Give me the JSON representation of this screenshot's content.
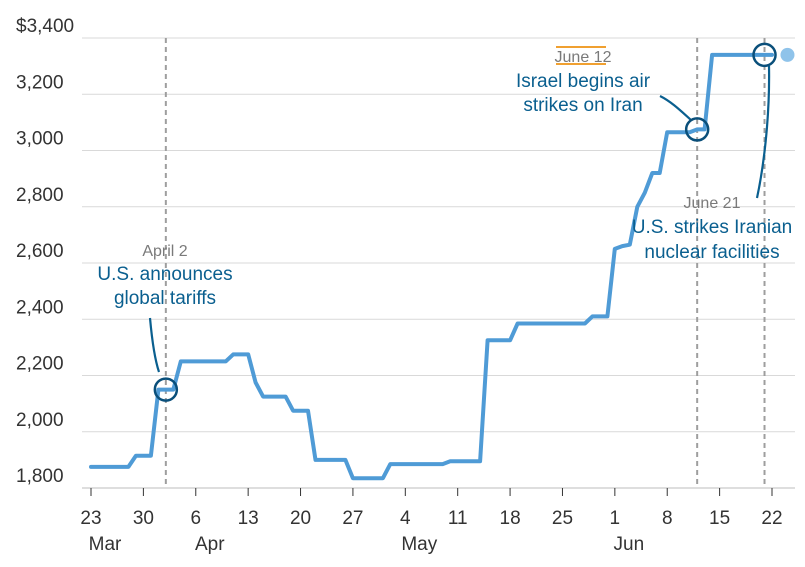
{
  "chart_data": {
    "type": "line",
    "ylabel": "",
    "xlabel": "",
    "ylim": [
      1800,
      3400
    ],
    "y_ticks": [
      "$3,400",
      "3,200",
      "3,000",
      "2,800",
      "2,600",
      "2,400",
      "2,200",
      "2,000",
      "1,800"
    ],
    "y_tick_values": [
      3400,
      3200,
      3000,
      2800,
      2600,
      2400,
      2200,
      2000,
      1800
    ],
    "x_ticks": [
      {
        "label": "23",
        "date": "2025-03-23"
      },
      {
        "label": "30",
        "date": "2025-03-30"
      },
      {
        "label": "6",
        "date": "2025-04-06"
      },
      {
        "label": "13",
        "date": "2025-04-13"
      },
      {
        "label": "20",
        "date": "2025-04-20"
      },
      {
        "label": "27",
        "date": "2025-04-27"
      },
      {
        "label": "4",
        "date": "2025-05-04"
      },
      {
        "label": "11",
        "date": "2025-05-11"
      },
      {
        "label": "18",
        "date": "2025-05-18"
      },
      {
        "label": "25",
        "date": "2025-05-25"
      },
      {
        "label": "1",
        "date": "2025-06-01"
      },
      {
        "label": "8",
        "date": "2025-06-08"
      },
      {
        "label": "15",
        "date": "2025-06-15"
      },
      {
        "label": "22",
        "date": "2025-06-22"
      }
    ],
    "month_labels": [
      {
        "label": "Mar",
        "date": "2025-03-23"
      },
      {
        "label": "Apr",
        "date": "2025-04-06"
      },
      {
        "label": "May",
        "date": "2025-05-04"
      },
      {
        "label": "Jun",
        "date": "2025-06-01"
      }
    ],
    "x_range": [
      "2025-03-23",
      "2025-06-24"
    ],
    "series": [
      {
        "color": "#4f9bd6",
        "points": [
          [
            "2025-03-23",
            1875
          ],
          [
            "2025-03-28",
            1875
          ],
          [
            "2025-03-29",
            1915
          ],
          [
            "2025-03-31",
            1915
          ],
          [
            "2025-04-01",
            2150
          ],
          [
            "2025-04-03",
            2150
          ],
          [
            "2025-04-04",
            2250
          ],
          [
            "2025-04-10",
            2250
          ],
          [
            "2025-04-11",
            2275
          ],
          [
            "2025-04-13",
            2275
          ],
          [
            "2025-04-14",
            2175
          ],
          [
            "2025-04-15",
            2125
          ],
          [
            "2025-04-18",
            2125
          ],
          [
            "2025-04-19",
            2075
          ],
          [
            "2025-04-21",
            2075
          ],
          [
            "2025-04-22",
            1900
          ],
          [
            "2025-04-26",
            1900
          ],
          [
            "2025-04-27",
            1835
          ],
          [
            "2025-05-01",
            1835
          ],
          [
            "2025-05-02",
            1885
          ],
          [
            "2025-05-09",
            1885
          ],
          [
            "2025-05-10",
            1895
          ],
          [
            "2025-05-14",
            1895
          ],
          [
            "2025-05-15",
            2325
          ],
          [
            "2025-05-18",
            2325
          ],
          [
            "2025-05-19",
            2385
          ],
          [
            "2025-05-28",
            2385
          ],
          [
            "2025-05-29",
            2410
          ],
          [
            "2025-05-31",
            2410
          ],
          [
            "2025-06-01",
            2650
          ],
          [
            "2025-06-02",
            2660
          ],
          [
            "2025-06-03",
            2665
          ],
          [
            "2025-06-04",
            2800
          ],
          [
            "2025-06-05",
            2850
          ],
          [
            "2025-06-06",
            2920
          ],
          [
            "2025-06-07",
            2920
          ],
          [
            "2025-06-08",
            3065
          ],
          [
            "2025-06-11",
            3065
          ],
          [
            "2025-06-12",
            3075
          ],
          [
            "2025-06-13",
            3075
          ],
          [
            "2025-06-14",
            3340
          ],
          [
            "2025-06-21",
            3340
          ],
          [
            "2025-06-22",
            3340
          ]
        ],
        "end_dot": [
          "2025-06-23",
          3340
        ]
      }
    ],
    "annotations": [
      {
        "date_label": "April 2",
        "line1": "U.S. announces",
        "line2": "global tariffs",
        "date": "2025-04-02",
        "value": 2150
      },
      {
        "date_label": "June 12",
        "line1": "Israel begins air",
        "line2": "strikes on Iran",
        "date": "2025-06-12",
        "value": 3075
      },
      {
        "date_label": "June 21",
        "line1": "U.S. strikes Iranian",
        "line2": "nuclear facilities",
        "date": "2025-06-21",
        "value": 3340
      }
    ],
    "grid": true,
    "legend": "none"
  }
}
